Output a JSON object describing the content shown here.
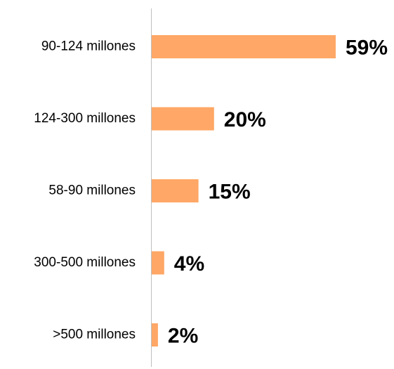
{
  "chart_data": {
    "type": "bar",
    "orientation": "horizontal",
    "categories": [
      "90-124 millones",
      "124-300 millones",
      "58-90 millones",
      "300-500 millones",
      ">500 millones"
    ],
    "values": [
      59,
      20,
      15,
      4,
      2
    ],
    "value_labels": [
      "59%",
      "20%",
      "15%",
      "4%",
      "2%"
    ],
    "xlim": [
      0,
      59
    ],
    "grid": false,
    "legend": "none",
    "bar_color": "#FFA766",
    "axis_color": "#BFBFBF"
  }
}
